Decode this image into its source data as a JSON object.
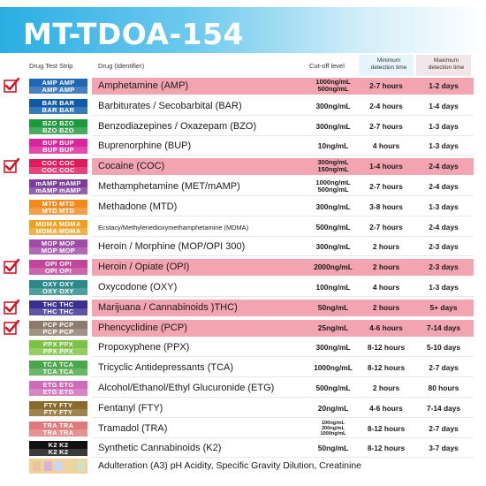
{
  "title": "MT-TDOA-154",
  "headers": {
    "strip": "Drug Test Strip",
    "drug": "Drug (Identifier)",
    "cutoff": "Cut-off level",
    "min_line1": "Minimum",
    "min_line2": "detection time",
    "max_line1": "Maximum",
    "max_line2": "detection time"
  },
  "rows": [
    {
      "strip": "AMP",
      "color": "#1f66b5",
      "drug": "Amphetamine (AMP)",
      "cutoff": [
        "1000ng/mL",
        "500ng/mL"
      ],
      "min": "2-7 hours",
      "max": "1-2 days",
      "highlight": true
    },
    {
      "strip": "BAR",
      "color": "#0f5aa8",
      "drug": "Barbiturates / Secobarbital (BAR)",
      "cutoff": [
        "300ng/mL"
      ],
      "min": "2-4 hours",
      "max": "1-4 days",
      "highlight": false
    },
    {
      "strip": "BZO",
      "color": "#1b9a3b",
      "drug": "Benzodiazepines / Oxazepam (BZO)",
      "cutoff": [
        "300ng/mL"
      ],
      "min": "2-7 hours",
      "max": "1-3 days",
      "highlight": false
    },
    {
      "strip": "BUP",
      "color": "#d9249b",
      "drug": "Buprenorphine (BUP)",
      "cutoff": [
        "10ng/mL"
      ],
      "min": "4 hours",
      "max": "1-3 days",
      "highlight": false
    },
    {
      "strip": "COC",
      "color": "#e01a5c",
      "drug": "Cocaine (COC)",
      "cutoff": [
        "300ng/mL",
        "150ng/mL"
      ],
      "min": "1-4 hours",
      "max": "2-4 days",
      "highlight": true
    },
    {
      "strip": "mAMP",
      "color": "#7a3d9a",
      "drug": "Methamphetamine (MET/mAMP)",
      "cutoff": [
        "1000ng/mL",
        "500ng/mL"
      ],
      "min": "2-7 hours",
      "max": "2-4 days",
      "highlight": false
    },
    {
      "strip": "MTD",
      "color": "#f08a1e",
      "drug": "Methadone (MTD)",
      "cutoff": [
        "300ng/mL"
      ],
      "min": "3-8 hours",
      "max": "1-3 days",
      "highlight": false
    },
    {
      "strip": "MDMA",
      "color": "#f0a020",
      "drug": "Ecstacy/Methylenedioxymethamphetamine (MDMA)",
      "cutoff": [
        "500ng/mL"
      ],
      "min": "2-7 hours",
      "max": "2-4 days",
      "highlight": false,
      "small": true
    },
    {
      "strip": "MOP",
      "color": "#a24aa8",
      "drug": "Heroin / Morphine (MOP/OPI 300)",
      "cutoff": [
        "300ng/mL"
      ],
      "min": "2 hours",
      "max": "2-3 days",
      "highlight": false
    },
    {
      "strip": "OPI",
      "color": "#c0459b",
      "drug": "Heroin / Opiate (OPI)",
      "cutoff": [
        "2000ng/mL"
      ],
      "min": "2 hours",
      "max": "2-3 days",
      "highlight": true
    },
    {
      "strip": "OXY",
      "color": "#2a8a8a",
      "drug": "Oxycodone (OXY)",
      "cutoff": [
        "100ng/mL"
      ],
      "min": "4 hours",
      "max": "1-3 days",
      "highlight": false
    },
    {
      "strip": "THC",
      "color": "#3a2f8f",
      "drug": "Marijuana / Cannabinoids )THC)",
      "cutoff": [
        "50ng/mL"
      ],
      "min": "2 hours",
      "max": "5+ days",
      "highlight": true
    },
    {
      "strip": "PCP",
      "color": "#8c7a6a",
      "drug": "Phencyclidine (PCP)",
      "cutoff": [
        "25ng/mL"
      ],
      "min": "4-6 hours",
      "max": "7-14 days",
      "highlight": true
    },
    {
      "strip": "PPX",
      "color": "#7cc242",
      "drug": "Propoxyphene (PPX)",
      "cutoff": [
        "300ng/mL"
      ],
      "min": "8-12 hours",
      "max": "5-10 days",
      "highlight": false
    },
    {
      "strip": "TCA",
      "color": "#4aa64a",
      "drug": "Tricyclic Antidepressants (TCA)",
      "cutoff": [
        "1000ng/mL"
      ],
      "min": "8-12 hours",
      "max": "2-7 days",
      "highlight": false
    },
    {
      "strip": "ETG",
      "color": "#d06ab8",
      "drug": "Alcohol/Ethanol/Ethyl Glucuronide (ETG)",
      "cutoff": [
        "500ng/mL"
      ],
      "min": "2 hours",
      "max": "80 hours",
      "highlight": false
    },
    {
      "strip": "FTY",
      "color": "#8a6a2a",
      "drug": "Fentanyl (FTY)",
      "cutoff": [
        "20ng/mL"
      ],
      "min": "4-6 hours",
      "max": "7-14 days",
      "highlight": false
    },
    {
      "strip": "TRA",
      "color": "#e07a7a",
      "drug": "Tramadol (TRA)",
      "cutoff": [
        "100ng/mL",
        "200ng/mL",
        "1000ng/mL"
      ],
      "min": "8-12 hours",
      "max": "2-7 days",
      "highlight": false
    },
    {
      "strip": "K2",
      "color": "#111111",
      "drug": "Synthetic Cannabinoids (K2)",
      "cutoff": [
        "50ng/mL"
      ],
      "min": "8-12 hours",
      "max": "3-7 days",
      "highlight": false
    }
  ],
  "footer": {
    "strip_color": "#f2d0a0",
    "text": "Adulteration (A3) pH Acidity, Specific Gravity Dilution, Creatinine"
  },
  "check_color": "#cc1a2a"
}
